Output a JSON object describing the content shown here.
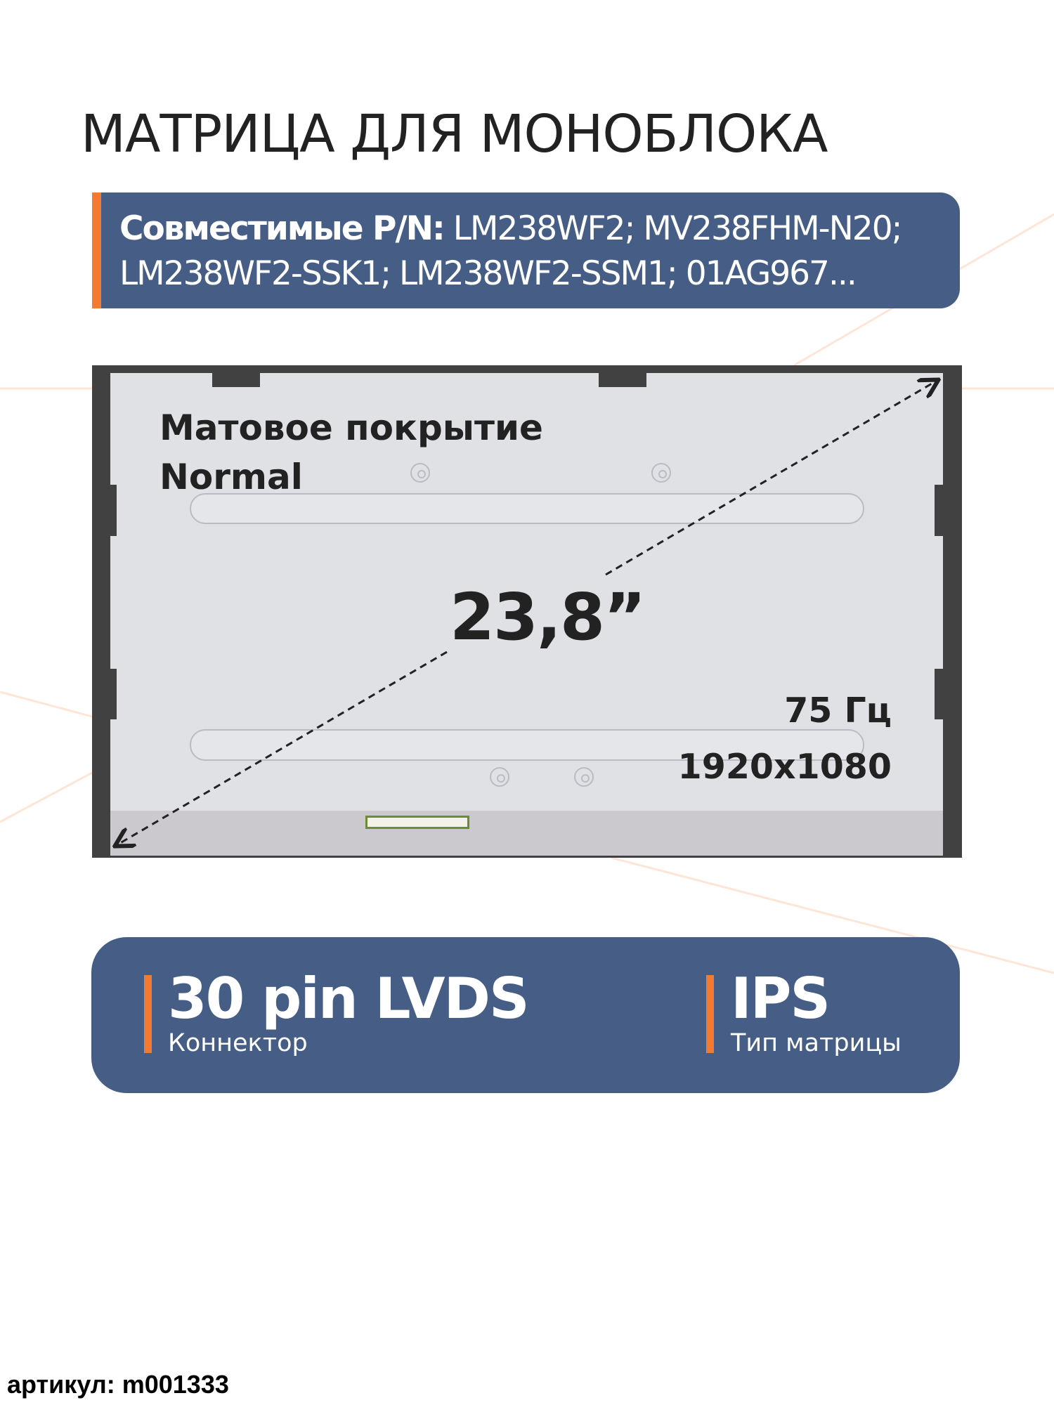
{
  "title": "МАТРИЦА ДЛЯ МОНОБЛОКА",
  "compatible": {
    "label": "Совместимые P/N:",
    "line1": "LM238WF2; MV238FHM-N20;",
    "line2": "LM238WF2-SSK1; LM238WF2-SSM1; 01AG967..."
  },
  "panel": {
    "coating": "Матовое покрытие",
    "coating_type": "Normal",
    "diagonal": "23,8”",
    "refresh_rate": "75 Гц",
    "resolution": "1920x1080"
  },
  "specs": [
    {
      "value": "30 pin LVDS",
      "label": "Коннектор"
    },
    {
      "value": "IPS",
      "label": "Тип матрицы"
    }
  ],
  "sku": "артикул: m001333",
  "colors": {
    "accent": "#f47a30",
    "card": "#465e86",
    "bezel": "#414141"
  }
}
